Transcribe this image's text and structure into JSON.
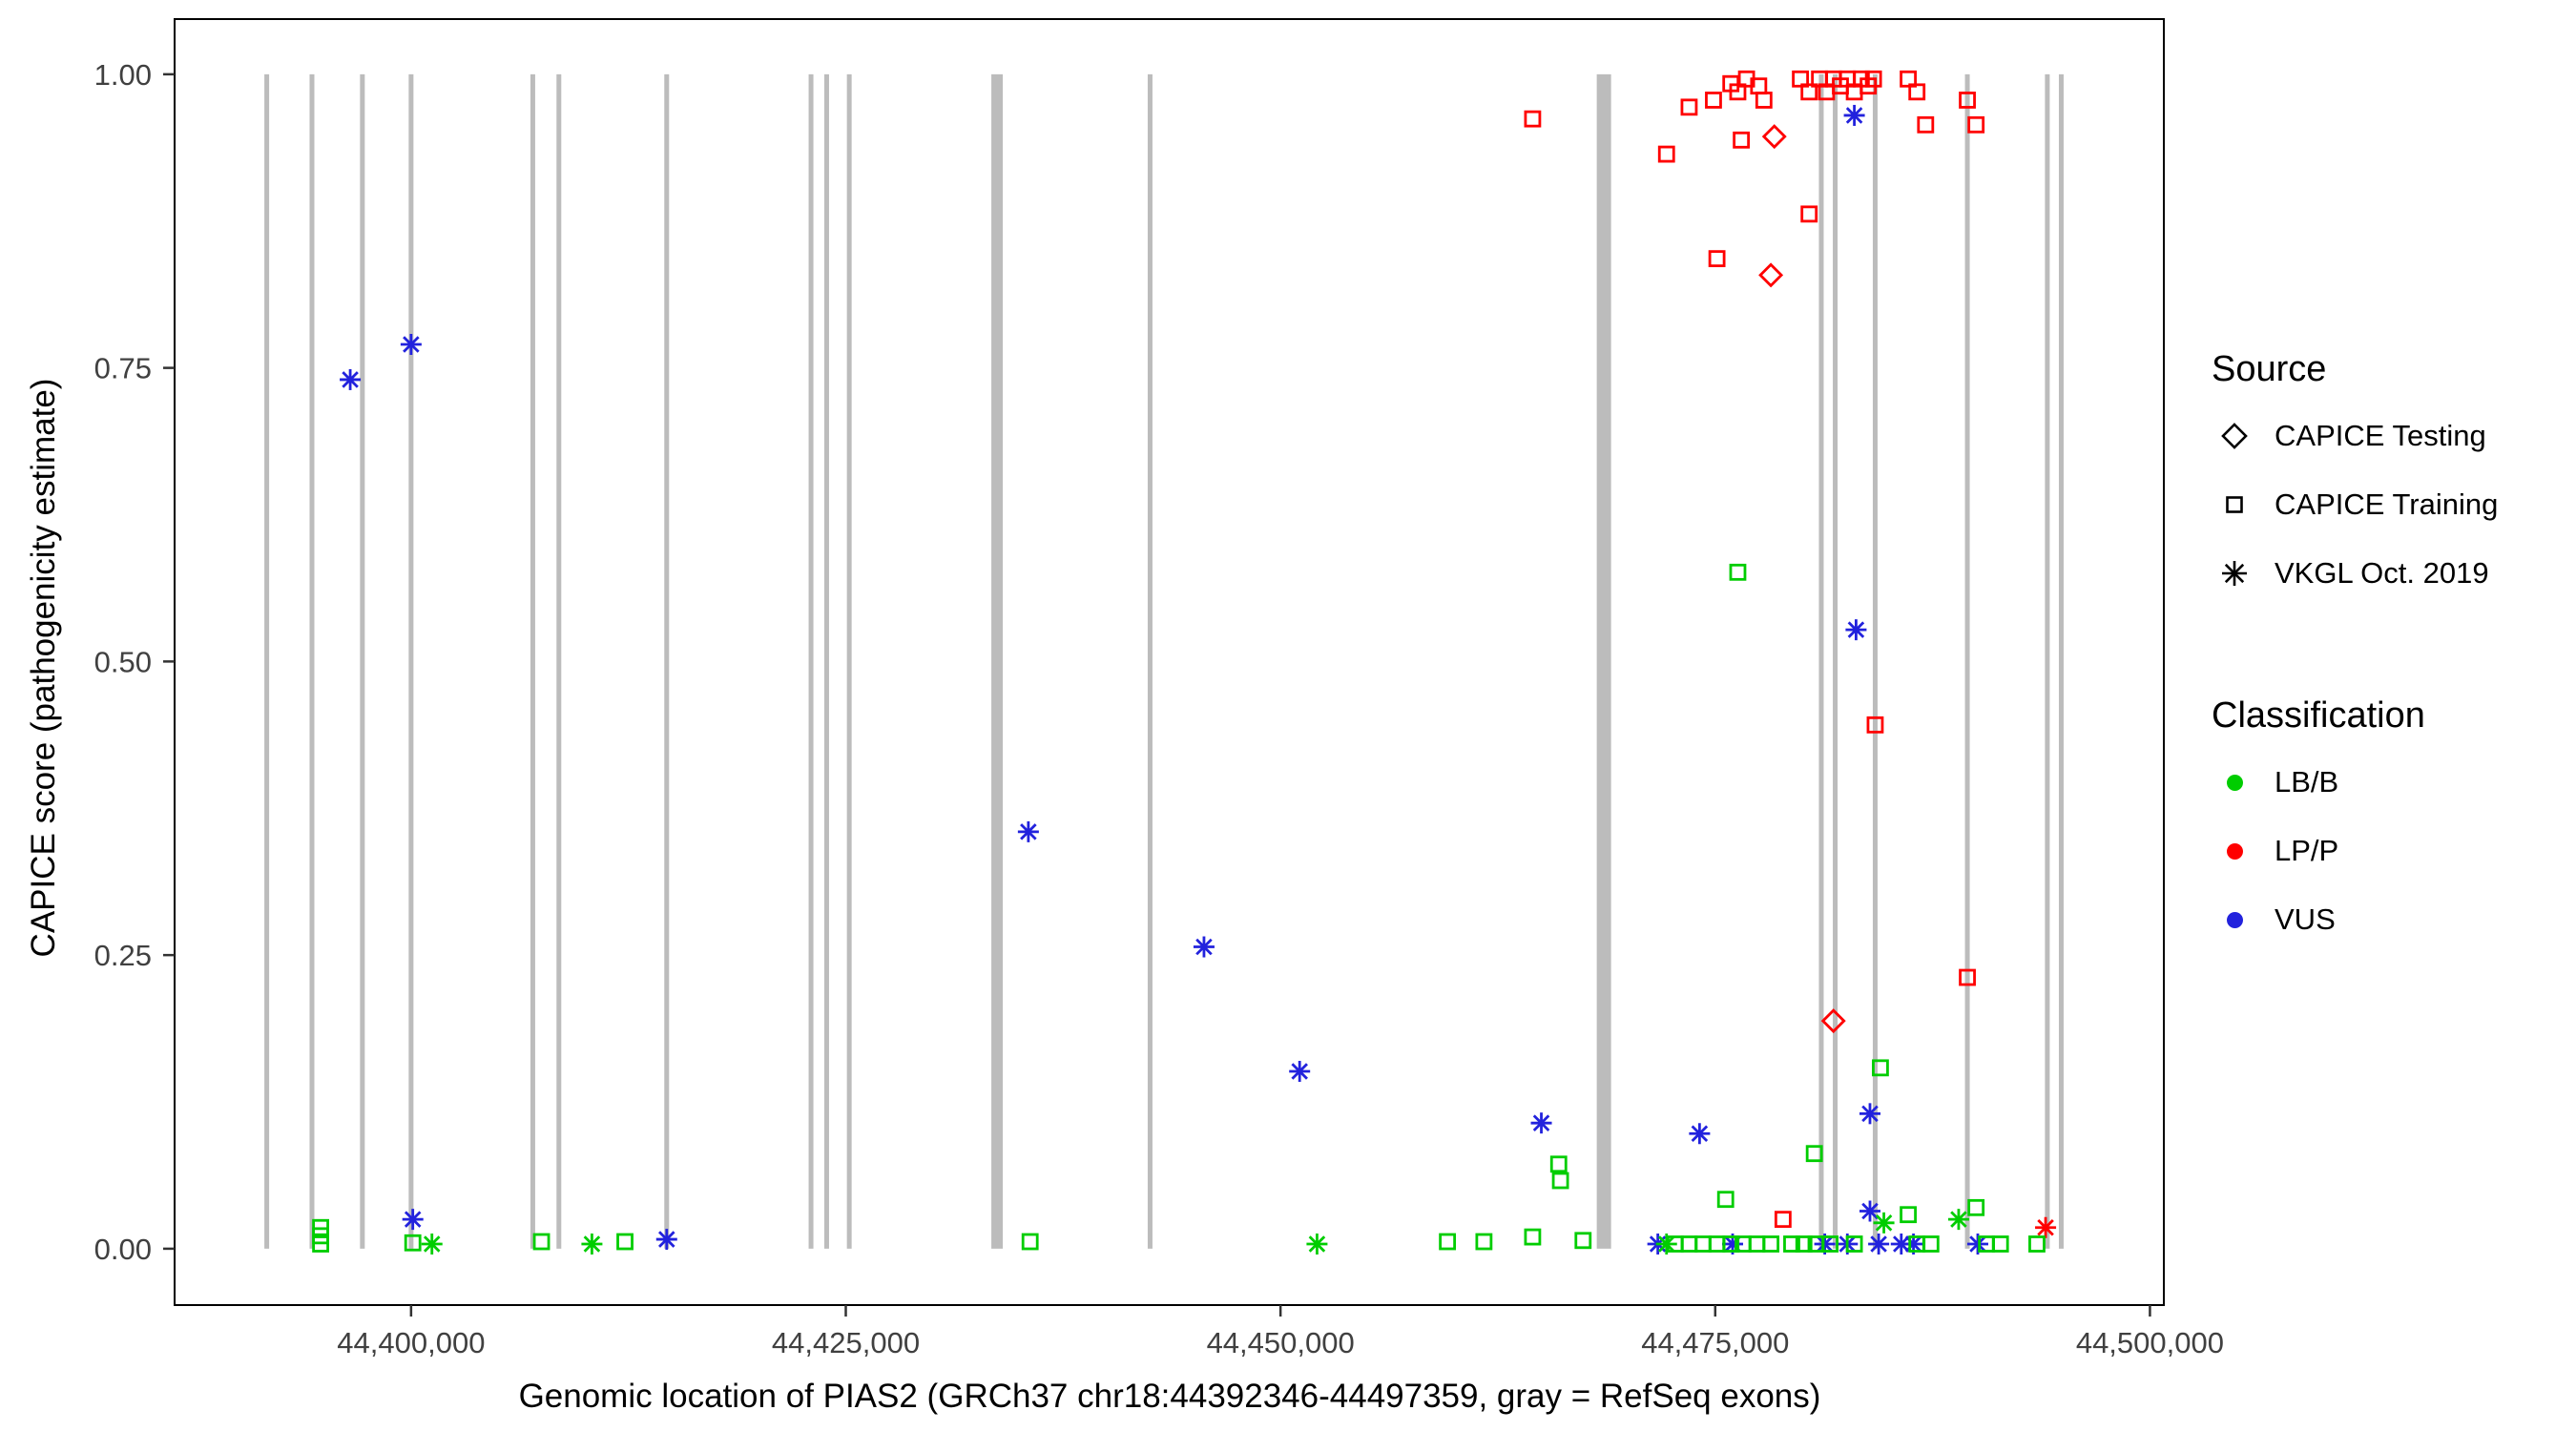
{
  "axes": {
    "x_title": "Genomic location of PIAS2 (GRCh37 chr18:44392346-44497359, gray = RefSeq exons)",
    "y_title": "CAPICE score (pathogenicity estimate)"
  },
  "legend": {
    "source": {
      "title": "Source",
      "items": [
        {
          "label": "CAPICE Testing",
          "shape": "diamond"
        },
        {
          "label": "CAPICE Training",
          "shape": "square"
        },
        {
          "label": "VKGL Oct. 2019",
          "shape": "asterisk"
        }
      ]
    },
    "classification": {
      "title": "Classification",
      "items": [
        {
          "label": "LB/B",
          "color": "#00CD00"
        },
        {
          "label": "LP/P",
          "color": "#FF0000"
        },
        {
          "label": "VUS",
          "color": "#2222DD"
        }
      ]
    }
  },
  "chart_data": {
    "type": "scatter",
    "title": "",
    "xlabel": "Genomic location of PIAS2 (GRCh37 chr18:44392346-44497359, gray = RefSeq exons)",
    "ylabel": "CAPICE score (pathogenicity estimate)",
    "xlim": [
      44386400,
      44500800
    ],
    "ylim": [
      -0.048,
      1.047
    ],
    "x_ticks": [
      44400000,
      44425000,
      44450000,
      44475000,
      44500000
    ],
    "x_tick_labels": [
      "44,400,000",
      "44,425,000",
      "44,450,000",
      "44,475,000",
      "44,500,000"
    ],
    "y_ticks": [
      0,
      0.25,
      0.5,
      0.75,
      1
    ],
    "y_tick_labels": [
      "0.00",
      "0.25",
      "0.50",
      "0.75",
      "1.00"
    ],
    "grid": false,
    "legend_position": "right",
    "exon_note": "gray vertical bars = RefSeq exons",
    "exon_color": "#BCBCBC",
    "exons": [
      {
        "x": 44391700,
        "w": 5
      },
      {
        "x": 44394300,
        "w": 5
      },
      {
        "x": 44397200,
        "w": 5
      },
      {
        "x": 44400000,
        "w": 5
      },
      {
        "x": 44407000,
        "w": 5
      },
      {
        "x": 44408500,
        "w": 5
      },
      {
        "x": 44414700,
        "w": 5
      },
      {
        "x": 44423000,
        "w": 5
      },
      {
        "x": 44423900,
        "w": 5
      },
      {
        "x": 44425200,
        "w": 5
      },
      {
        "x": 44433700,
        "w": 12
      },
      {
        "x": 44442500,
        "w": 5
      },
      {
        "x": 44468600,
        "w": 15
      },
      {
        "x": 44481100,
        "w": 5
      },
      {
        "x": 44481900,
        "w": 5
      },
      {
        "x": 44484200,
        "w": 5
      },
      {
        "x": 44489500,
        "w": 5
      },
      {
        "x": 44494100,
        "w": 5
      },
      {
        "x": 44494900,
        "w": 5
      }
    ],
    "colors": {
      "LB/B": "#00CD00",
      "LP/P": "#FF0000",
      "VUS": "#2222DD"
    },
    "source_shapes": {
      "testing": "diamond",
      "training": "square",
      "vkgl": "asterisk"
    },
    "source_labels": {
      "testing": "CAPICE Testing",
      "training": "CAPICE Training",
      "vkgl": "VKGL Oct. 2019"
    },
    "points_columns": [
      "genomic_position",
      "capice_score",
      "classification",
      "source"
    ],
    "points": [
      [
        44396500,
        0.74,
        "VUS",
        "vkgl"
      ],
      [
        44400000,
        0.77,
        "VUS",
        "vkgl"
      ],
      [
        44400100,
        0.025,
        "VUS",
        "vkgl"
      ],
      [
        44414700,
        0.008,
        "VUS",
        "vkgl"
      ],
      [
        44435500,
        0.355,
        "VUS",
        "vkgl"
      ],
      [
        44445600,
        0.257,
        "VUS",
        "vkgl"
      ],
      [
        44451100,
        0.151,
        "VUS",
        "vkgl"
      ],
      [
        44465000,
        0.107,
        "VUS",
        "vkgl"
      ],
      [
        44474100,
        0.098,
        "VUS",
        "vkgl"
      ],
      [
        44483000,
        0.965,
        "VUS",
        "vkgl"
      ],
      [
        44483100,
        0.527,
        "VUS",
        "vkgl"
      ],
      [
        44483900,
        0.115,
        "VUS",
        "vkgl"
      ],
      [
        44483900,
        0.032,
        "VUS",
        "vkgl"
      ],
      [
        44471700,
        0.004,
        "VUS",
        "vkgl"
      ],
      [
        44476000,
        0.004,
        "VUS",
        "vkgl"
      ],
      [
        44481300,
        0.004,
        "VUS",
        "vkgl"
      ],
      [
        44482600,
        0.004,
        "VUS",
        "vkgl"
      ],
      [
        44484400,
        0.004,
        "VUS",
        "vkgl"
      ],
      [
        44485700,
        0.004,
        "VUS",
        "vkgl"
      ],
      [
        44486400,
        0.004,
        "VUS",
        "vkgl"
      ],
      [
        44490100,
        0.004,
        "VUS",
        "vkgl"
      ],
      [
        44494000,
        0.018,
        "LP/P",
        "vkgl"
      ],
      [
        44478400,
        0.947,
        "LP/P",
        "testing"
      ],
      [
        44478200,
        0.829,
        "LP/P",
        "testing"
      ],
      [
        44481800,
        0.194,
        "LP/P",
        "testing"
      ],
      [
        44464500,
        0.962,
        "LP/P",
        "training"
      ],
      [
        44472200,
        0.932,
        "LP/P",
        "training"
      ],
      [
        44473500,
        0.972,
        "LP/P",
        "training"
      ],
      [
        44474900,
        0.978,
        "LP/P",
        "training"
      ],
      [
        44475900,
        0.992,
        "LP/P",
        "training"
      ],
      [
        44476300,
        0.985,
        "LP/P",
        "training"
      ],
      [
        44476500,
        0.944,
        "LP/P",
        "training"
      ],
      [
        44476800,
        0.996,
        "LP/P",
        "training"
      ],
      [
        44477500,
        0.99,
        "LP/P",
        "training"
      ],
      [
        44477800,
        0.978,
        "LP/P",
        "training"
      ],
      [
        44479900,
        0.996,
        "LP/P",
        "training"
      ],
      [
        44480400,
        0.985,
        "LP/P",
        "training"
      ],
      [
        44480400,
        0.881,
        "LP/P",
        "training"
      ],
      [
        44481000,
        0.996,
        "LP/P",
        "training"
      ],
      [
        44481400,
        0.985,
        "LP/P",
        "training"
      ],
      [
        44481800,
        0.996,
        "LP/P",
        "training"
      ],
      [
        44482200,
        0.99,
        "LP/P",
        "training"
      ],
      [
        44482600,
        0.996,
        "LP/P",
        "training"
      ],
      [
        44483000,
        0.985,
        "LP/P",
        "training"
      ],
      [
        44483400,
        0.996,
        "LP/P",
        "training"
      ],
      [
        44483800,
        0.99,
        "LP/P",
        "training"
      ],
      [
        44484100,
        0.996,
        "LP/P",
        "training"
      ],
      [
        44486100,
        0.996,
        "LP/P",
        "training"
      ],
      [
        44486600,
        0.985,
        "LP/P",
        "training"
      ],
      [
        44487100,
        0.957,
        "LP/P",
        "training"
      ],
      [
        44489500,
        0.978,
        "LP/P",
        "training"
      ],
      [
        44490000,
        0.957,
        "LP/P",
        "training"
      ],
      [
        44475100,
        0.843,
        "LP/P",
        "training"
      ],
      [
        44484200,
        0.446,
        "LP/P",
        "training"
      ],
      [
        44489500,
        0.231,
        "LP/P",
        "training"
      ],
      [
        44478900,
        0.025,
        "LP/P",
        "training"
      ],
      [
        44394800,
        0.018,
        "LB/B",
        "training"
      ],
      [
        44394800,
        0.011,
        "LB/B",
        "training"
      ],
      [
        44394800,
        0.004,
        "LB/B",
        "training"
      ],
      [
        44400100,
        0.005,
        "LB/B",
        "training"
      ],
      [
        44407500,
        0.006,
        "LB/B",
        "training"
      ],
      [
        44412300,
        0.006,
        "LB/B",
        "training"
      ],
      [
        44435600,
        0.006,
        "LB/B",
        "training"
      ],
      [
        44459600,
        0.006,
        "LB/B",
        "training"
      ],
      [
        44461700,
        0.006,
        "LB/B",
        "training"
      ],
      [
        44464500,
        0.01,
        "LB/B",
        "training"
      ],
      [
        44466000,
        0.072,
        "LB/B",
        "training"
      ],
      [
        44466100,
        0.058,
        "LB/B",
        "training"
      ],
      [
        44467400,
        0.007,
        "LB/B",
        "training"
      ],
      [
        44476300,
        0.576,
        "LB/B",
        "training"
      ],
      [
        44475600,
        0.042,
        "LB/B",
        "training"
      ],
      [
        44480700,
        0.081,
        "LB/B",
        "training"
      ],
      [
        44484500,
        0.154,
        "LB/B",
        "training"
      ],
      [
        44486100,
        0.029,
        "LB/B",
        "training"
      ],
      [
        44490000,
        0.035,
        "LB/B",
        "training"
      ],
      [
        44472700,
        0.004,
        "LB/B",
        "training"
      ],
      [
        44473500,
        0.004,
        "LB/B",
        "training"
      ],
      [
        44474300,
        0.004,
        "LB/B",
        "training"
      ],
      [
        44475100,
        0.004,
        "LB/B",
        "training"
      ],
      [
        44475900,
        0.004,
        "LB/B",
        "training"
      ],
      [
        44476600,
        0.004,
        "LB/B",
        "training"
      ],
      [
        44477400,
        0.004,
        "LB/B",
        "training"
      ],
      [
        44478200,
        0.004,
        "LB/B",
        "training"
      ],
      [
        44479400,
        0.004,
        "LB/B",
        "training"
      ],
      [
        44480100,
        0.004,
        "LB/B",
        "training"
      ],
      [
        44480800,
        0.004,
        "LB/B",
        "training"
      ],
      [
        44481600,
        0.004,
        "LB/B",
        "training"
      ],
      [
        44483000,
        0.004,
        "LB/B",
        "training"
      ],
      [
        44486600,
        0.004,
        "LB/B",
        "training"
      ],
      [
        44487400,
        0.004,
        "LB/B",
        "training"
      ],
      [
        44490600,
        0.004,
        "LB/B",
        "training"
      ],
      [
        44491400,
        0.004,
        "LB/B",
        "training"
      ],
      [
        44493500,
        0.004,
        "LB/B",
        "training"
      ],
      [
        44401200,
        0.004,
        "LB/B",
        "vkgl"
      ],
      [
        44410400,
        0.004,
        "LB/B",
        "vkgl"
      ],
      [
        44452100,
        0.004,
        "LB/B",
        "vkgl"
      ],
      [
        44472200,
        0.004,
        "LB/B",
        "vkgl"
      ],
      [
        44484700,
        0.022,
        "LB/B",
        "vkgl"
      ],
      [
        44489000,
        0.025,
        "LB/B",
        "vkgl"
      ]
    ]
  }
}
